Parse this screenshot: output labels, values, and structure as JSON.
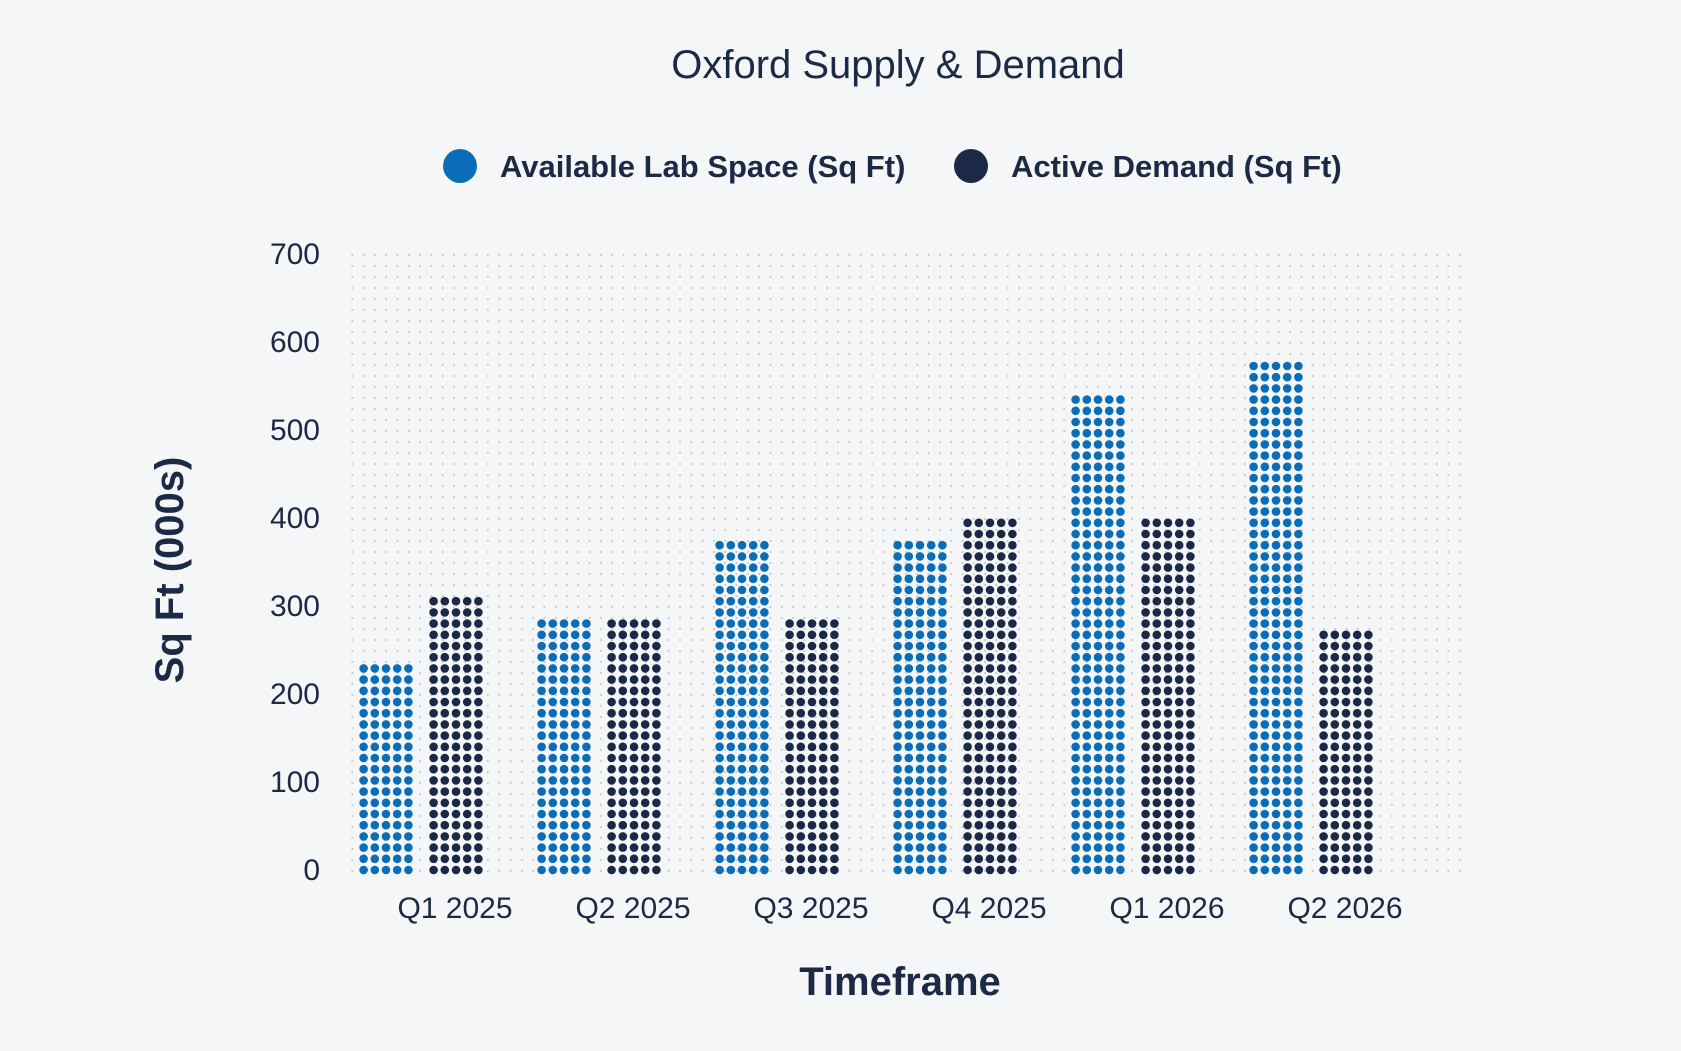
{
  "chart_data": {
    "type": "bar",
    "title": "Oxford Supply & Demand",
    "xlabel": "Timeframe",
    "ylabel": "Sq Ft (000s)",
    "categories": [
      "Q1 2025",
      "Q2 2025",
      "Q3 2025",
      "Q4 2025",
      "Q1 2026",
      "Q2 2026"
    ],
    "series": [
      {
        "name": "Available Lab Space (Sq Ft)",
        "color": "#0b6cb8",
        "values": [
          240,
          285,
          380,
          380,
          535,
          580
        ]
      },
      {
        "name": "Active Demand (Sq Ft)",
        "color": "#1b2846",
        "values": [
          315,
          285,
          285,
          395,
          395,
          270
        ]
      }
    ],
    "ylim": [
      0,
      700
    ],
    "yticks": [
      0,
      100,
      200,
      300,
      400,
      500,
      600,
      700
    ],
    "grid": "dotted",
    "legend_position": "top-center"
  }
}
